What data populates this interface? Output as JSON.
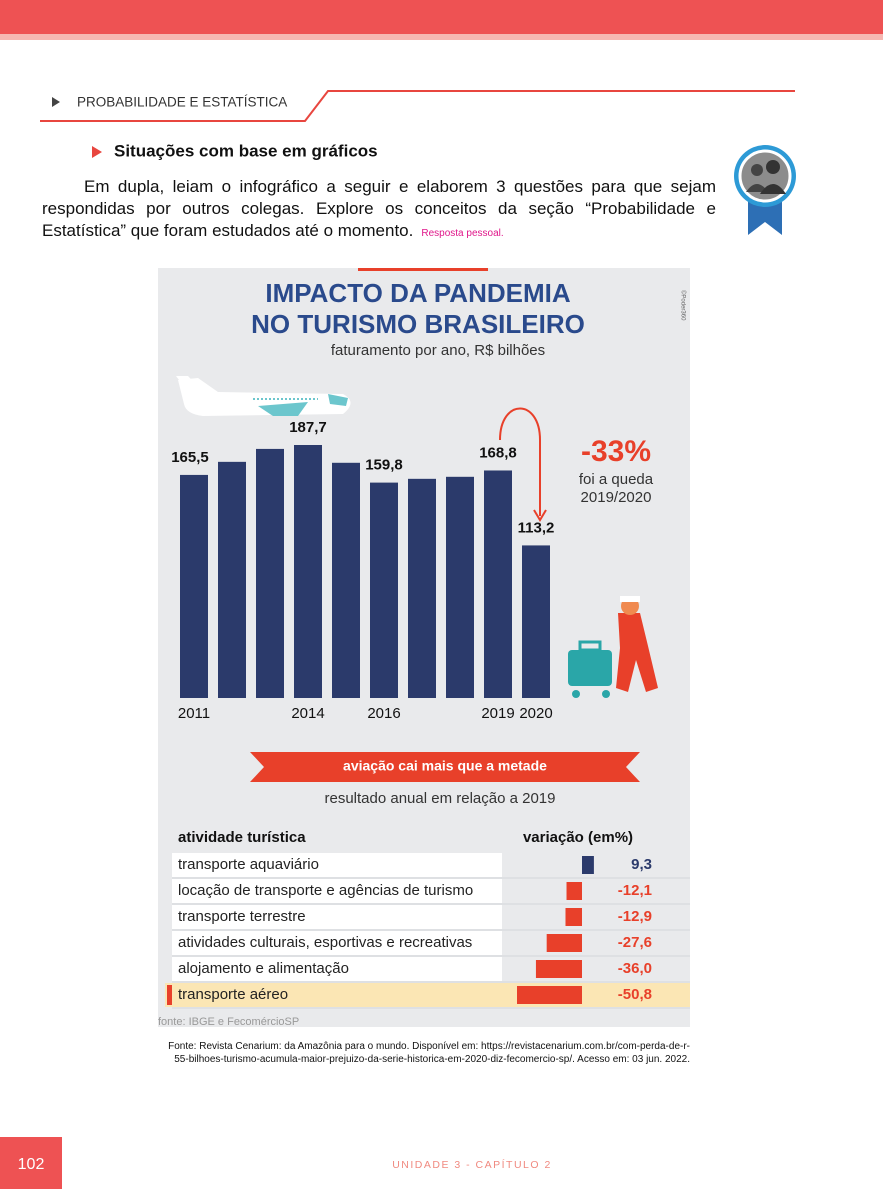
{
  "header": {
    "section": "PROBABILIDADE E ESTATÍSTICA"
  },
  "subsection": "Situações com base em gráficos",
  "paragraph": "Em dupla, leiam o infográfico a seguir e elaborem 3 questões para que sejam respondidas por outros colegas. Explore os conceitos da seção “Probabilidade e Estatística” que foram estudados até o momento.",
  "answer_note": "Resposta pessoal.",
  "infographic": {
    "credit": "©Poder360",
    "title_line1": "IMPACTO DA PANDEMIA",
    "title_line2": "NO TURISMO BRASILEIRO",
    "subtitle": "faturamento por ano, R$ bilhões",
    "drop": "-33%",
    "drop_note_line1": "foi a queda",
    "drop_note_line2": "2019/2020",
    "banner": "aviação cai mais que a metade",
    "banner_subtitle": "resultado anual em relação a 2019",
    "col_activity": "atividade turística",
    "col_variation": "variação (em%)",
    "footnote": "fonte: IBGE e FecomércioSP"
  },
  "chart_data": [
    {
      "type": "bar",
      "categories": [
        "2011",
        null,
        null,
        "2014",
        null,
        "2016",
        null,
        null,
        "2019",
        "2020"
      ],
      "values": [
        165.5,
        175.2,
        184.8,
        187.7,
        174.5,
        159.8,
        162.6,
        164.1,
        168.8,
        113.2
      ],
      "value_labels": [
        "165,5",
        null,
        null,
        "187,7",
        null,
        "159,8",
        null,
        null,
        "168,8",
        "113,2"
      ],
      "color": "#2b3a6b"
    },
    {
      "type": "barh",
      "categories": [
        "transporte aquaviário",
        "locação de transporte e agências de turismo",
        "transporte terrestre",
        "atividades culturais, esportivas e recreativas",
        "alojamento e alimentação",
        "transporte aéreo"
      ],
      "values": [
        9.3,
        -12.1,
        -12.9,
        -27.6,
        -36.0,
        -50.8
      ],
      "value_labels": [
        "9,3",
        "-12,1",
        "-12,9",
        "-27,6",
        "-36,0",
        "-50,8"
      ],
      "positive_color": "#2b3a6b",
      "negative_color": "#e8402a"
    }
  ],
  "source": "Fonte: Revista Cenarium: da Amazônia para o mundo. Disponível em: https://revistacenarium.com.br/com-perda-de-r-55-bilhoes-turismo-acumula-maior-prejuizo-da-serie-historica-em-2020-diz-fecomercio-sp/. Acesso em: 03 jun. 2022.",
  "footer": {
    "page": "102",
    "unit": "UNIDADE 3 - CAPÍTULO 2"
  }
}
